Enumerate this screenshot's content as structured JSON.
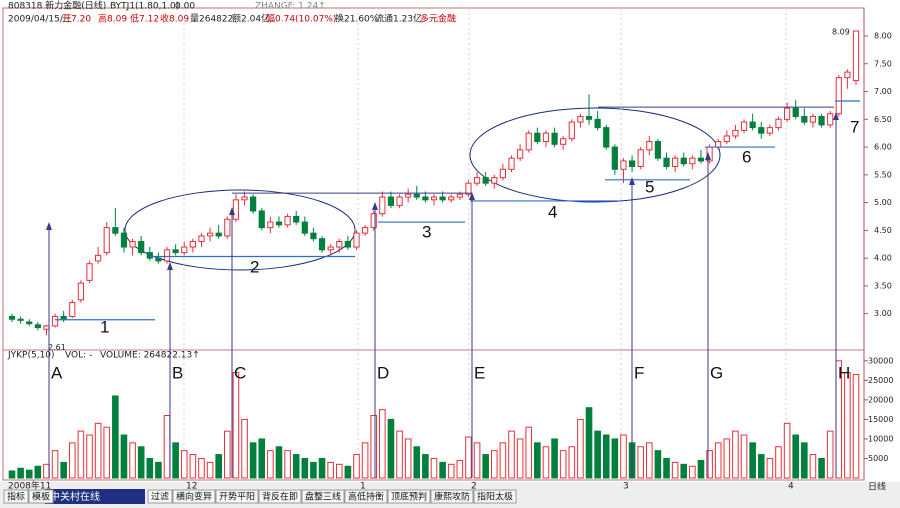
{
  "chart_data": {
    "type": "candlestick",
    "title": "808318 新力金融(日线)",
    "indicator": "BYTJ1(1.80,1.0)",
    "indicator_value": "0.00",
    "zhangf": "ZHANGF: 1.24↑",
    "quote": [
      "2009/04/15/三",
      "开7.20",
      "高8.09",
      "低7.12",
      "收8.09",
      "量264822",
      "额2.04亿",
      "幅0.74(10.07%)",
      "换21.60%",
      "流通1.23亿",
      "多元金融"
    ],
    "volume_title": "JYKP(5,10)",
    "volume_text": "VOL: -",
    "volume_value": "VOLUME: 264822.13↑",
    "x_labels": [
      "2008年11",
      "12",
      "1",
      "2",
      "3",
      "4"
    ],
    "up_color": "#e8303a",
    "down_color": "#00803c",
    "candles": [
      [
        2.95,
        3.0,
        2.85,
        2.9,
        1800
      ],
      [
        2.9,
        2.95,
        2.82,
        2.88,
        2500
      ],
      [
        2.85,
        2.9,
        2.78,
        2.82,
        2000
      ],
      [
        2.8,
        2.85,
        2.7,
        2.75,
        3000
      ],
      [
        2.72,
        2.8,
        2.61,
        2.78,
        3500
      ],
      [
        2.78,
        3.0,
        2.75,
        2.95,
        7000
      ],
      [
        2.95,
        3.05,
        2.85,
        2.9,
        4000
      ],
      [
        2.95,
        3.25,
        2.92,
        3.2,
        9000
      ],
      [
        3.25,
        3.6,
        3.2,
        3.55,
        12000
      ],
      [
        3.6,
        3.95,
        3.55,
        3.9,
        11000
      ],
      [
        3.95,
        4.2,
        3.9,
        4.05,
        14000
      ],
      [
        4.1,
        4.65,
        4.05,
        4.55,
        13000
      ],
      [
        4.55,
        4.9,
        4.4,
        4.45,
        21000
      ],
      [
        4.45,
        4.55,
        4.1,
        4.2,
        11000
      ],
      [
        4.2,
        4.35,
        4.05,
        4.3,
        9000
      ],
      [
        4.3,
        4.4,
        4.05,
        4.1,
        8000
      ],
      [
        4.1,
        4.2,
        3.95,
        4.0,
        5000
      ],
      [
        4.0,
        4.1,
        3.9,
        3.95,
        4000
      ],
      [
        3.95,
        4.2,
        3.9,
        4.15,
        16000
      ],
      [
        4.15,
        4.25,
        4.05,
        4.1,
        9000
      ],
      [
        4.1,
        4.3,
        4.05,
        4.2,
        7000
      ],
      [
        4.2,
        4.35,
        4.1,
        4.3,
        6000
      ],
      [
        4.3,
        4.45,
        4.2,
        4.4,
        5000
      ],
      [
        4.4,
        4.55,
        4.3,
        4.45,
        4000
      ],
      [
        4.45,
        4.6,
        4.35,
        4.4,
        6000
      ],
      [
        4.4,
        4.75,
        4.35,
        4.7,
        12000
      ],
      [
        4.7,
        5.15,
        4.65,
        5.05,
        27000
      ],
      [
        5.05,
        5.2,
        4.95,
        5.1,
        15000
      ],
      [
        5.1,
        5.15,
        4.8,
        4.85,
        9000
      ],
      [
        4.85,
        4.9,
        4.5,
        4.55,
        10000
      ],
      [
        4.55,
        4.75,
        4.45,
        4.65,
        7000
      ],
      [
        4.65,
        4.75,
        4.55,
        4.6,
        8000
      ],
      [
        4.6,
        4.8,
        4.55,
        4.75,
        7000
      ],
      [
        4.75,
        4.85,
        4.6,
        4.65,
        6000
      ],
      [
        4.65,
        4.75,
        4.4,
        4.45,
        5000
      ],
      [
        4.45,
        4.55,
        4.3,
        4.35,
        4000
      ],
      [
        4.35,
        4.4,
        4.1,
        4.15,
        5000
      ],
      [
        4.15,
        4.25,
        4.05,
        4.2,
        4000
      ],
      [
        4.2,
        4.35,
        4.1,
        4.3,
        3500
      ],
      [
        4.3,
        4.4,
        4.15,
        4.2,
        3000
      ],
      [
        4.2,
        4.5,
        4.15,
        4.45,
        6000
      ],
      [
        4.45,
        4.6,
        4.4,
        4.55,
        9000
      ],
      [
        4.55,
        4.85,
        4.5,
        4.8,
        16000
      ],
      [
        4.8,
        5.2,
        4.75,
        5.1,
        17500
      ],
      [
        5.1,
        5.2,
        4.9,
        4.95,
        15000
      ],
      [
        4.95,
        5.15,
        4.9,
        5.1,
        12000
      ],
      [
        5.1,
        5.25,
        5.0,
        5.15,
        10000
      ],
      [
        5.15,
        5.3,
        5.05,
        5.1,
        8000
      ],
      [
        5.1,
        5.2,
        5.0,
        5.05,
        6000
      ],
      [
        5.05,
        5.15,
        4.95,
        5.1,
        5000
      ],
      [
        5.1,
        5.2,
        5.0,
        5.05,
        4000
      ],
      [
        5.05,
        5.15,
        5.0,
        5.1,
        3500
      ],
      [
        5.1,
        5.2,
        5.05,
        5.15,
        4500
      ],
      [
        5.15,
        5.4,
        5.1,
        5.35,
        10500
      ],
      [
        5.35,
        5.55,
        5.3,
        5.45,
        9000
      ],
      [
        5.45,
        5.55,
        5.3,
        5.35,
        6000
      ],
      [
        5.35,
        5.5,
        5.25,
        5.45,
        7000
      ],
      [
        5.45,
        5.7,
        5.4,
        5.6,
        9000
      ],
      [
        5.6,
        5.85,
        5.55,
        5.8,
        12000
      ],
      [
        5.8,
        6.05,
        5.75,
        5.95,
        10000
      ],
      [
        5.95,
        6.3,
        5.9,
        6.25,
        13000
      ],
      [
        6.25,
        6.35,
        6.05,
        6.1,
        9000
      ],
      [
        6.1,
        6.3,
        6.0,
        6.25,
        8000
      ],
      [
        6.25,
        6.35,
        6.0,
        6.05,
        10000
      ],
      [
        6.05,
        6.2,
        5.95,
        6.15,
        7000
      ],
      [
        6.15,
        6.5,
        6.1,
        6.45,
        8000
      ],
      [
        6.45,
        6.6,
        6.35,
        6.55,
        15000
      ],
      [
        6.55,
        6.95,
        6.4,
        6.5,
        18000
      ],
      [
        6.5,
        6.65,
        6.3,
        6.35,
        12000
      ],
      [
        6.35,
        6.4,
        5.95,
        6.0,
        11000
      ],
      [
        6.0,
        6.05,
        5.5,
        5.6,
        10000
      ],
      [
        5.6,
        5.8,
        5.35,
        5.75,
        11000
      ],
      [
        5.75,
        5.85,
        5.55,
        5.65,
        9000
      ],
      [
        5.65,
        6.0,
        5.6,
        5.95,
        8000
      ],
      [
        5.95,
        6.2,
        5.85,
        6.1,
        9000
      ],
      [
        6.1,
        6.15,
        5.75,
        5.8,
        7000
      ],
      [
        5.8,
        5.9,
        5.6,
        5.65,
        5000
      ],
      [
        5.65,
        5.85,
        5.55,
        5.8,
        4000
      ],
      [
        5.8,
        5.9,
        5.65,
        5.7,
        3500
      ],
      [
        5.7,
        5.85,
        5.6,
        5.8,
        3000
      ],
      [
        5.8,
        5.95,
        5.7,
        5.75,
        4500
      ],
      [
        5.75,
        6.05,
        5.7,
        6.0,
        7000
      ],
      [
        6.0,
        6.15,
        5.95,
        6.1,
        9000
      ],
      [
        6.1,
        6.3,
        6.05,
        6.2,
        10000
      ],
      [
        6.2,
        6.4,
        6.15,
        6.3,
        12000
      ],
      [
        6.3,
        6.5,
        6.25,
        6.45,
        11000
      ],
      [
        6.45,
        6.6,
        6.3,
        6.35,
        9000
      ],
      [
        6.35,
        6.45,
        6.15,
        6.25,
        6000
      ],
      [
        6.25,
        6.4,
        6.2,
        6.35,
        5000
      ],
      [
        6.35,
        6.55,
        6.3,
        6.5,
        8000
      ],
      [
        6.5,
        6.8,
        6.45,
        6.7,
        14000
      ],
      [
        6.7,
        6.85,
        6.5,
        6.55,
        11000
      ],
      [
        6.55,
        6.7,
        6.4,
        6.45,
        9000
      ],
      [
        6.45,
        6.6,
        6.35,
        6.55,
        6000
      ],
      [
        6.55,
        6.6,
        6.35,
        6.4,
        5000
      ],
      [
        6.4,
        6.65,
        6.35,
        6.6,
        12000
      ],
      [
        6.6,
        7.3,
        6.55,
        7.25,
        30000
      ],
      [
        7.25,
        7.4,
        7.05,
        7.35,
        27000
      ],
      [
        7.2,
        8.09,
        7.12,
        8.09,
        26482
      ]
    ],
    "ylim": [
      2.4,
      8.45
    ],
    "yticks": [
      {
        "value": 3,
        "label": "3.00"
      },
      {
        "value": 3.5,
        "label": "3.50"
      },
      {
        "value": 4,
        "label": "4.00"
      },
      {
        "value": 4.5,
        "label": "4.50"
      },
      {
        "value": 5,
        "label": "5.00"
      },
      {
        "value": 5.5,
        "label": "5.50"
      },
      {
        "value": 6,
        "label": "6.00"
      },
      {
        "value": 6.5,
        "label": "6.50"
      },
      {
        "value": 7,
        "label": "7.00"
      },
      {
        "value": 7.5,
        "label": "7.50"
      },
      {
        "value": 8,
        "label": "8.00"
      }
    ],
    "y2lim": [
      0,
      32000
    ],
    "y2ticks": [
      5000,
      10000,
      15000,
      20000,
      25000,
      30000
    ],
    "low_label": 2.61,
    "high_label": 8.09,
    "levels": [
      {
        "label": "1",
        "value": 2.89
      },
      {
        "label": "2",
        "value": 4.03
      },
      {
        "label": "3",
        "value": 4.65
      },
      {
        "label": "4",
        "value": 5.03
      },
      {
        "label": "5",
        "value": 5.41
      },
      {
        "label": "6",
        "value": 6.0
      },
      {
        "label": "7",
        "value": 6.83
      }
    ],
    "guides": [
      5.17,
      6.72
    ],
    "signals": [
      "A",
      "B",
      "C",
      "D",
      "E",
      "F",
      "G",
      "H"
    ],
    "tabs": [
      "指标",
      "模板",
      "过滤",
      "横向变异",
      "开势平阳",
      "背反在即",
      "盘整三线",
      "高低持衡",
      "顶底预判",
      "康熙攻防",
      "指阳太极"
    ],
    "watermark": "中关村在线",
    "period": "日线"
  }
}
